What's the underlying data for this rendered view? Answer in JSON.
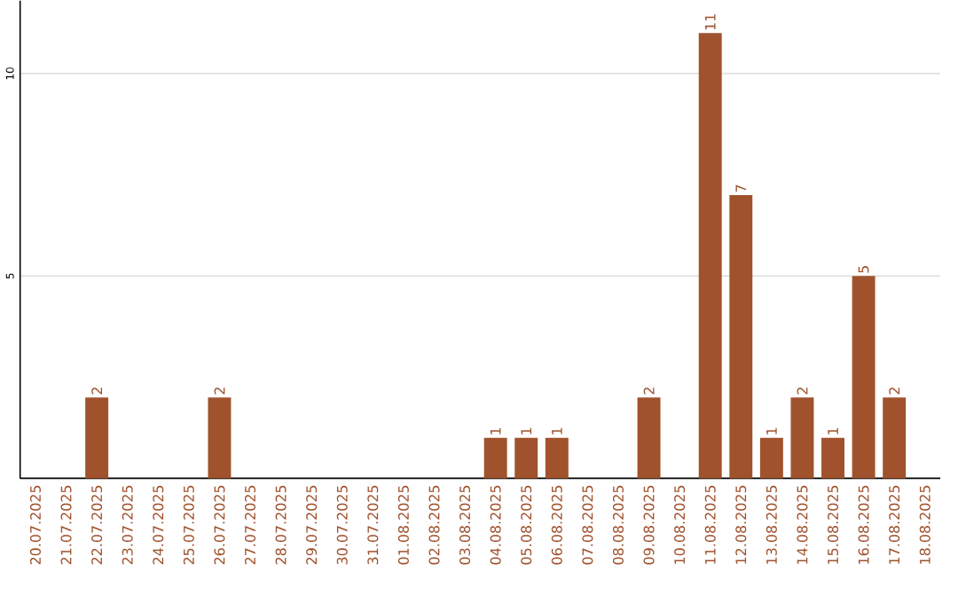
{
  "chart_data": {
    "type": "bar",
    "categories": [
      "20.07.2025",
      "21.07.2025",
      "22.07.2025",
      "23.07.2025",
      "24.07.2025",
      "25.07.2025",
      "26.07.2025",
      "27.07.2025",
      "28.07.2025",
      "29.07.2025",
      "30.07.2025",
      "31.07.2025",
      "01.08.2025",
      "02.08.2025",
      "03.08.2025",
      "04.08.2025",
      "05.08.2025",
      "06.08.2025",
      "07.08.2025",
      "08.08.2025",
      "09.08.2025",
      "10.08.2025",
      "11.08.2025",
      "12.08.2025",
      "13.08.2025",
      "14.08.2025",
      "15.08.2025",
      "16.08.2025",
      "17.08.2025",
      "18.08.2025"
    ],
    "values": [
      0,
      0,
      2,
      0,
      0,
      0,
      2,
      0,
      0,
      0,
      0,
      0,
      0,
      0,
      0,
      1,
      1,
      1,
      0,
      0,
      2,
      0,
      11,
      7,
      1,
      2,
      1,
      5,
      2,
      0
    ],
    "value_labels": [
      null,
      null,
      "2",
      null,
      null,
      null,
      "2",
      null,
      null,
      null,
      null,
      null,
      null,
      null,
      null,
      "1",
      "1",
      "1",
      null,
      null,
      "2",
      null,
      "11",
      "7",
      "1",
      "2",
      "1",
      "5",
      "2",
      null
    ],
    "color": "#a0522d",
    "ylim": [
      0,
      11.8
    ],
    "yticks": [
      5,
      10
    ],
    "grid": "y"
  }
}
